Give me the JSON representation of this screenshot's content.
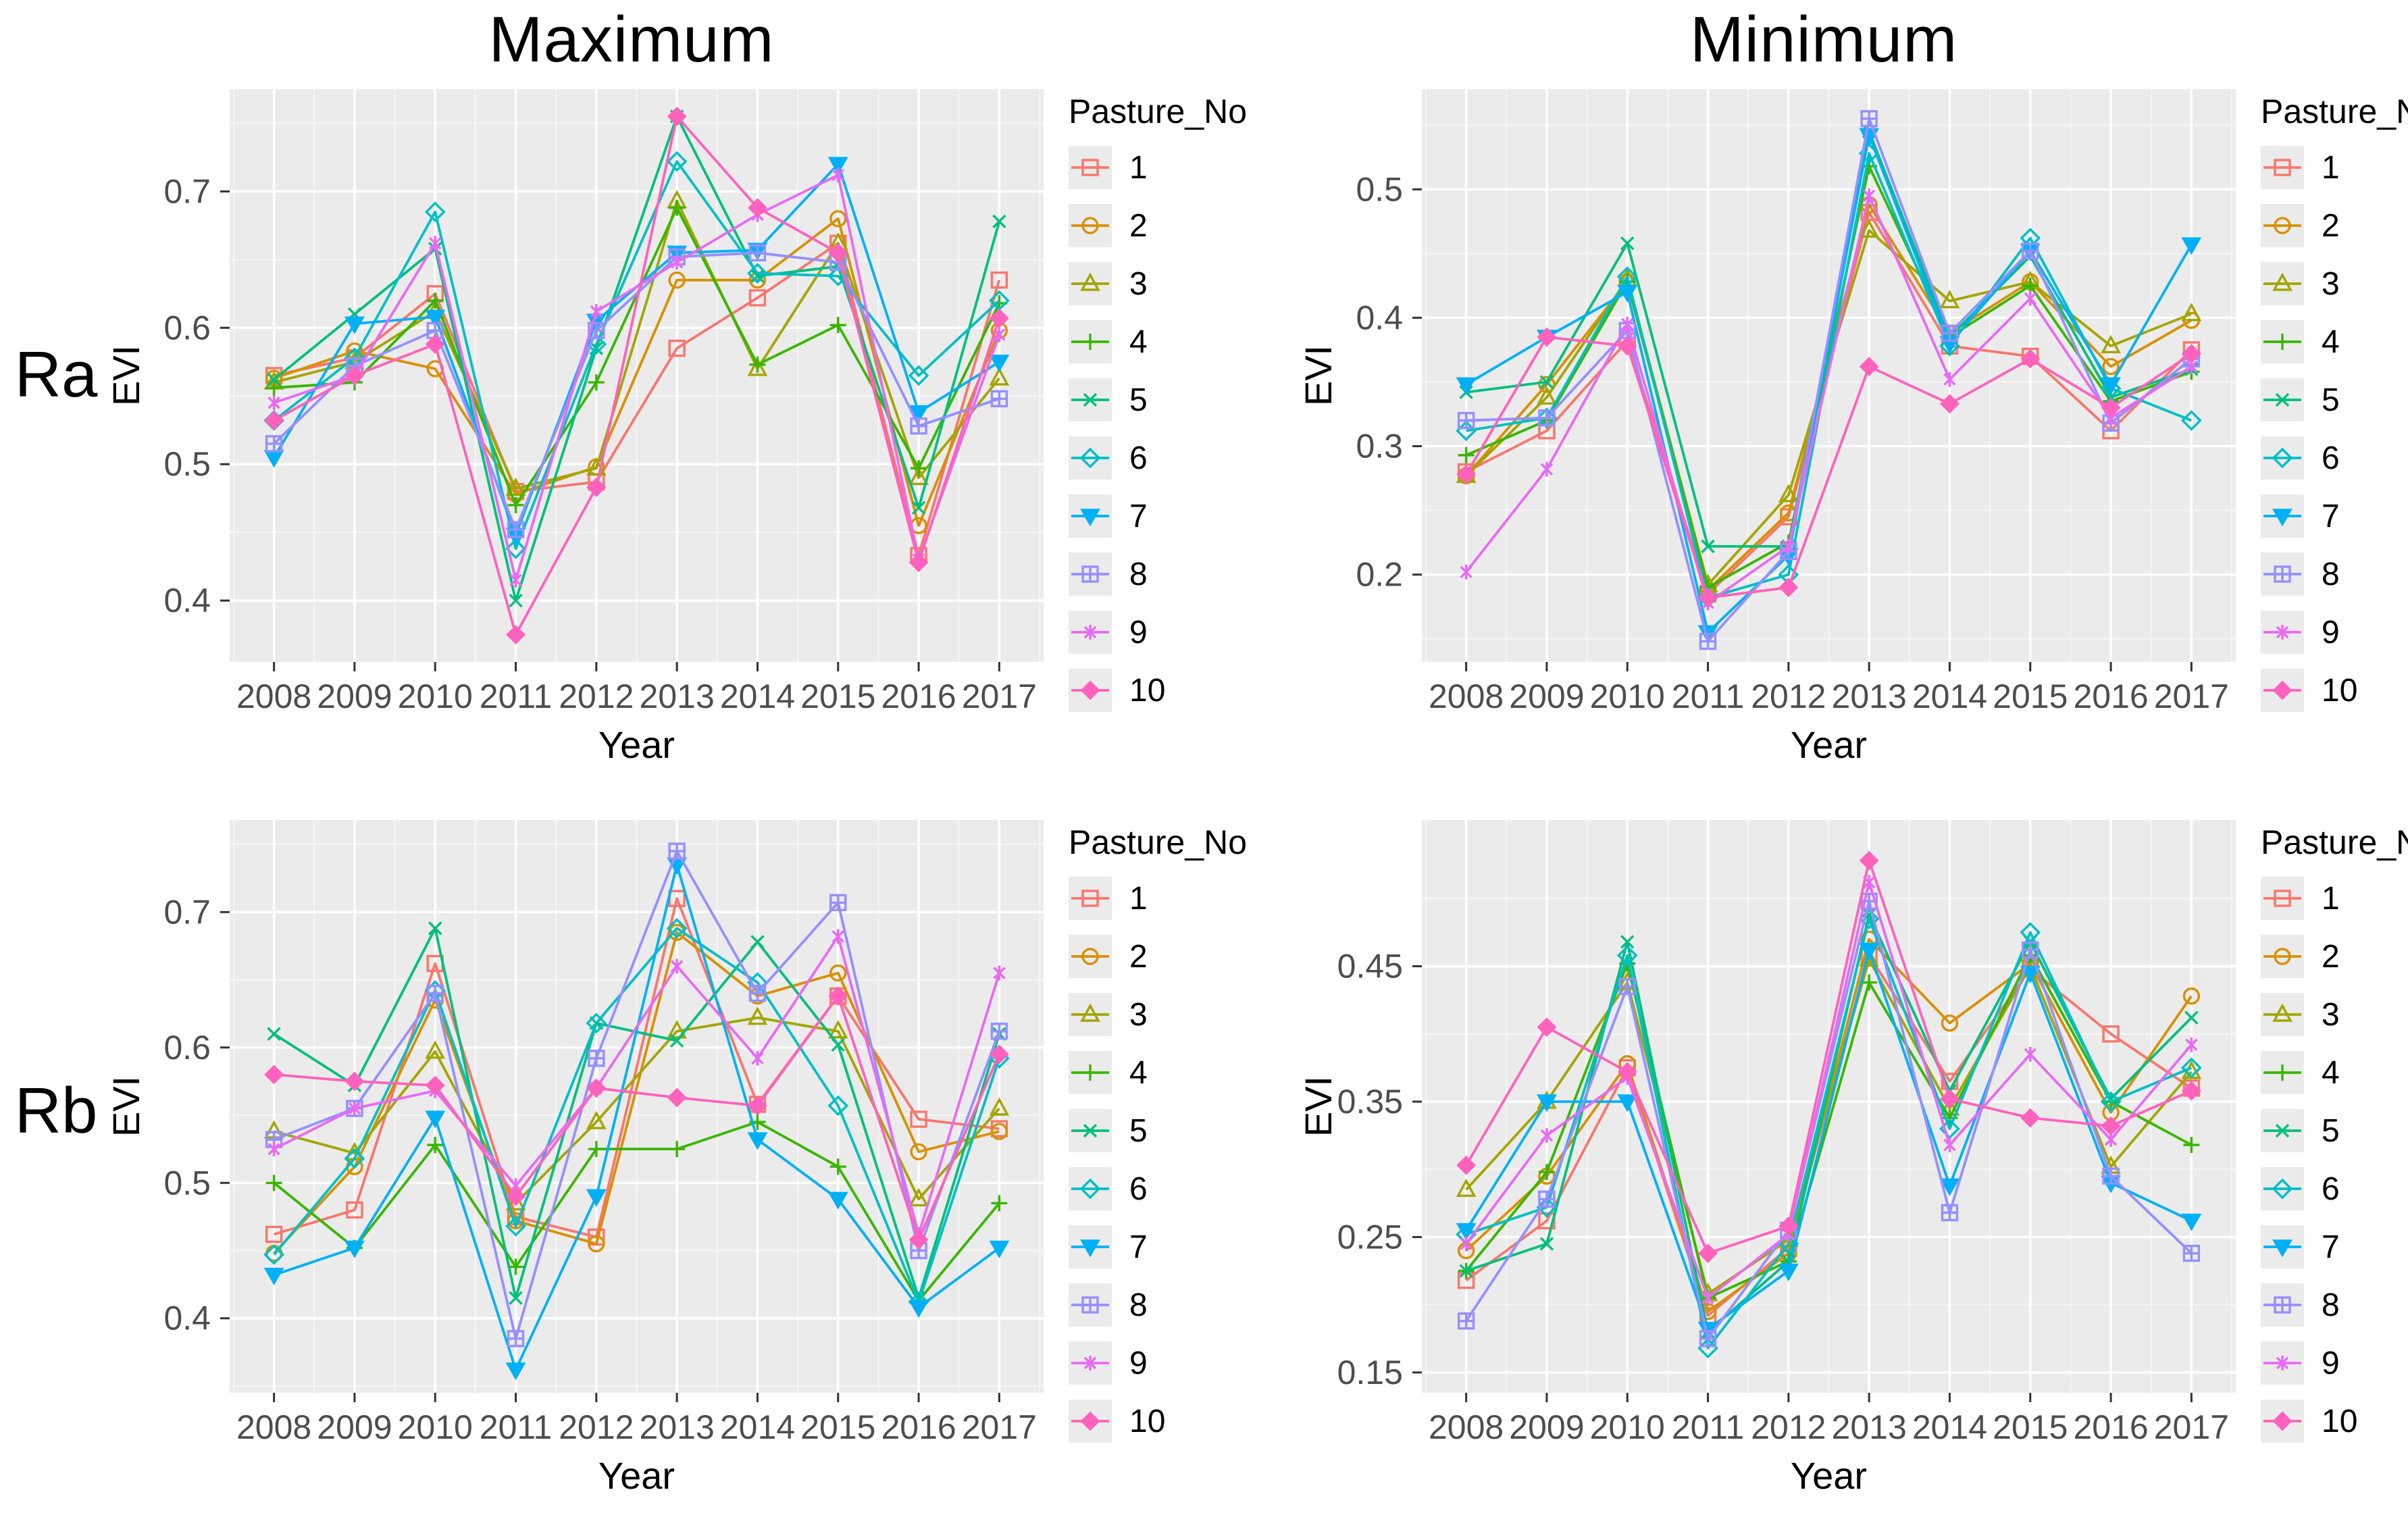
{
  "figure": {
    "col_titles": [
      "Maximum",
      "Minimum"
    ],
    "row_labels": [
      "Ra",
      "Rb"
    ]
  },
  "axes": {
    "x_label": "Year",
    "y_label": "EVI"
  },
  "legend": {
    "title": "Pasture_No",
    "items": [
      {
        "label": "1",
        "color": "#F8766D",
        "shape": "square-open"
      },
      {
        "label": "2",
        "color": "#D89000",
        "shape": "circle-open"
      },
      {
        "label": "3",
        "color": "#A3A500",
        "shape": "triangle-open"
      },
      {
        "label": "4",
        "color": "#39B600",
        "shape": "plus"
      },
      {
        "label": "5",
        "color": "#00BF7D",
        "shape": "x"
      },
      {
        "label": "6",
        "color": "#00BFC4",
        "shape": "diamond-open"
      },
      {
        "label": "7",
        "color": "#00B0F6",
        "shape": "triangle-down-filled"
      },
      {
        "label": "8",
        "color": "#9590FF",
        "shape": "square-plus"
      },
      {
        "label": "9",
        "color": "#E76BF3",
        "shape": "asterisk"
      },
      {
        "label": "10",
        "color": "#FF62BC",
        "shape": "diamond-filled"
      }
    ]
  },
  "style": {
    "panel_bg": "#EBEBEB",
    "grid_major": "#FFFFFF",
    "grid_minor": "#F5F5F5",
    "tick_color": "#333333",
    "tick_label_color": "#4D4D4D"
  },
  "chart_data": [
    {
      "id": "ra-maximum",
      "row": "Ra",
      "panel": "Maximum",
      "type": "line",
      "x": [
        2008,
        2009,
        2010,
        2011,
        2012,
        2013,
        2014,
        2015,
        2016,
        2017
      ],
      "ylim": [
        0.355,
        0.775
      ],
      "yticks": [
        0.4,
        0.5,
        0.6,
        0.7
      ],
      "ytick_labels": [
        "0.4",
        "0.5",
        "0.6",
        "0.7"
      ],
      "series": [
        {
          "name": "1",
          "values": [
            0.565,
            0.578,
            0.625,
            0.48,
            0.487,
            0.585,
            0.622,
            0.662,
            0.433,
            0.635
          ]
        },
        {
          "name": "2",
          "values": [
            0.563,
            0.583,
            0.57,
            0.478,
            0.498,
            0.635,
            0.635,
            0.68,
            0.455,
            0.598
          ]
        },
        {
          "name": "3",
          "values": [
            0.56,
            0.575,
            0.612,
            0.482,
            0.497,
            0.693,
            0.57,
            0.662,
            0.49,
            0.563
          ]
        },
        {
          "name": "4",
          "values": [
            0.556,
            0.56,
            0.62,
            0.47,
            0.56,
            0.688,
            0.573,
            0.602,
            0.497,
            0.618
          ]
        },
        {
          "name": "5",
          "values": [
            0.562,
            0.61,
            0.658,
            0.4,
            0.585,
            0.755,
            0.638,
            0.645,
            0.468,
            0.678
          ]
        },
        {
          "name": "6",
          "values": [
            0.532,
            0.578,
            0.685,
            0.438,
            0.588,
            0.722,
            0.64,
            0.638,
            0.565,
            0.62
          ]
        },
        {
          "name": "7",
          "values": [
            0.505,
            0.603,
            0.608,
            0.448,
            0.605,
            0.655,
            0.657,
            0.72,
            0.538,
            0.575
          ]
        },
        {
          "name": "8",
          "values": [
            0.515,
            0.572,
            0.598,
            0.452,
            0.598,
            0.652,
            0.655,
            0.648,
            0.528,
            0.548
          ]
        },
        {
          "name": "9",
          "values": [
            0.545,
            0.565,
            0.662,
            0.415,
            0.612,
            0.648,
            0.683,
            0.712,
            0.43,
            0.595
          ]
        },
        {
          "name": "10",
          "values": [
            0.532,
            0.565,
            0.588,
            0.375,
            0.483,
            0.755,
            0.688,
            0.655,
            0.428,
            0.607
          ]
        }
      ]
    },
    {
      "id": "ra-minimum",
      "row": "Ra",
      "panel": "Minimum",
      "type": "line",
      "x": [
        2008,
        2009,
        2010,
        2011,
        2012,
        2013,
        2014,
        2015,
        2016,
        2017
      ],
      "ylim": [
        0.132,
        0.578
      ],
      "yticks": [
        0.2,
        0.3,
        0.4,
        0.5
      ],
      "ytick_labels": [
        "0.2",
        "0.3",
        "0.4",
        "0.5"
      ],
      "series": [
        {
          "name": "1",
          "values": [
            0.28,
            0.312,
            0.382,
            0.185,
            0.245,
            0.482,
            0.378,
            0.37,
            0.312,
            0.375
          ]
        },
        {
          "name": "2",
          "values": [
            0.277,
            0.348,
            0.428,
            0.188,
            0.248,
            0.488,
            0.388,
            0.428,
            0.362,
            0.398
          ]
        },
        {
          "name": "3",
          "values": [
            0.277,
            0.338,
            0.43,
            0.192,
            0.262,
            0.468,
            0.413,
            0.428,
            0.378,
            0.403
          ]
        },
        {
          "name": "4",
          "values": [
            0.293,
            0.32,
            0.428,
            0.19,
            0.225,
            0.518,
            0.385,
            0.425,
            0.335,
            0.358
          ]
        },
        {
          "name": "5",
          "values": [
            0.342,
            0.35,
            0.458,
            0.222,
            0.222,
            0.545,
            0.385,
            0.448,
            0.338,
            0.36
          ]
        },
        {
          "name": "6",
          "values": [
            0.312,
            0.322,
            0.432,
            0.182,
            0.2,
            0.528,
            0.378,
            0.462,
            0.345,
            0.32
          ]
        },
        {
          "name": "7",
          "values": [
            0.348,
            0.385,
            0.42,
            0.155,
            0.215,
            0.542,
            0.38,
            0.452,
            0.348,
            0.457
          ]
        },
        {
          "name": "8",
          "values": [
            0.32,
            0.322,
            0.39,
            0.148,
            0.218,
            0.555,
            0.388,
            0.452,
            0.318,
            0.368
          ]
        },
        {
          "name": "9",
          "values": [
            0.202,
            0.282,
            0.395,
            0.178,
            0.222,
            0.495,
            0.352,
            0.415,
            0.322,
            0.362
          ]
        },
        {
          "name": "10",
          "values": [
            0.278,
            0.385,
            0.378,
            0.182,
            0.19,
            0.362,
            0.333,
            0.368,
            0.33,
            0.372
          ]
        }
      ]
    },
    {
      "id": "rb-maximum",
      "row": "Rb",
      "panel": "Maximum",
      "type": "line",
      "x": [
        2008,
        2009,
        2010,
        2011,
        2012,
        2013,
        2014,
        2015,
        2016,
        2017
      ],
      "ylim": [
        0.345,
        0.768
      ],
      "yticks": [
        0.4,
        0.5,
        0.6,
        0.7
      ],
      "ytick_labels": [
        "0.4",
        "0.5",
        "0.6",
        "0.7"
      ],
      "series": [
        {
          "name": "1",
          "values": [
            0.462,
            0.48,
            0.662,
            0.475,
            0.46,
            0.71,
            0.558,
            0.638,
            0.547,
            0.54
          ]
        },
        {
          "name": "2",
          "values": [
            0.448,
            0.512,
            0.635,
            0.472,
            0.455,
            0.685,
            0.638,
            0.655,
            0.523,
            0.538
          ]
        },
        {
          "name": "3",
          "values": [
            0.538,
            0.522,
            0.597,
            0.485,
            0.545,
            0.612,
            0.622,
            0.612,
            0.488,
            0.555
          ]
        },
        {
          "name": "4",
          "values": [
            0.5,
            0.452,
            0.528,
            0.438,
            0.525,
            0.525,
            0.545,
            0.512,
            0.413,
            0.485
          ]
        },
        {
          "name": "5",
          "values": [
            0.61,
            0.572,
            0.688,
            0.415,
            0.618,
            0.605,
            0.678,
            0.602,
            0.415,
            0.61
          ]
        },
        {
          "name": "6",
          "values": [
            0.447,
            0.518,
            0.642,
            0.468,
            0.618,
            0.688,
            0.648,
            0.557,
            0.412,
            0.592
          ]
        },
        {
          "name": "7",
          "values": [
            0.432,
            0.452,
            0.548,
            0.362,
            0.49,
            0.735,
            0.532,
            0.488,
            0.408,
            0.452
          ]
        },
        {
          "name": "8",
          "values": [
            0.532,
            0.555,
            0.64,
            0.385,
            0.592,
            0.745,
            0.64,
            0.707,
            0.45,
            0.612
          ]
        },
        {
          "name": "9",
          "values": [
            0.525,
            0.555,
            0.568,
            0.498,
            0.57,
            0.66,
            0.592,
            0.682,
            0.462,
            0.655
          ]
        },
        {
          "name": "10",
          "values": [
            0.58,
            0.575,
            0.572,
            0.49,
            0.57,
            0.563,
            0.557,
            0.638,
            0.458,
            0.595
          ]
        }
      ]
    },
    {
      "id": "rb-minimum",
      "row": "Rb",
      "panel": "Minimum",
      "type": "line",
      "x": [
        2008,
        2009,
        2010,
        2011,
        2012,
        2013,
        2014,
        2015,
        2016,
        2017
      ],
      "ylim": [
        0.135,
        0.558
      ],
      "yticks": [
        0.15,
        0.25,
        0.35,
        0.45
      ],
      "ytick_labels": [
        "0.15",
        "0.25",
        "0.35",
        "0.45"
      ],
      "series": [
        {
          "name": "1",
          "values": [
            0.218,
            0.262,
            0.375,
            0.192,
            0.242,
            0.458,
            0.365,
            0.448,
            0.4,
            0.36
          ]
        },
        {
          "name": "2",
          "values": [
            0.24,
            0.295,
            0.378,
            0.195,
            0.238,
            0.47,
            0.408,
            0.452,
            0.342,
            0.428
          ]
        },
        {
          "name": "3",
          "values": [
            0.285,
            0.35,
            0.438,
            0.208,
            0.248,
            0.455,
            0.345,
            0.45,
            0.302,
            0.372
          ]
        },
        {
          "name": "4",
          "values": [
            0.225,
            0.298,
            0.452,
            0.205,
            0.232,
            0.438,
            0.338,
            0.458,
            0.35,
            0.318
          ]
        },
        {
          "name": "5",
          "values": [
            0.225,
            0.245,
            0.468,
            0.18,
            0.232,
            0.488,
            0.358,
            0.468,
            0.352,
            0.412
          ]
        },
        {
          "name": "6",
          "values": [
            0.252,
            0.272,
            0.458,
            0.168,
            0.245,
            0.485,
            0.33,
            0.475,
            0.35,
            0.375
          ]
        },
        {
          "name": "7",
          "values": [
            0.255,
            0.35,
            0.35,
            0.182,
            0.225,
            0.462,
            0.288,
            0.445,
            0.29,
            0.262
          ]
        },
        {
          "name": "8",
          "values": [
            0.188,
            0.278,
            0.435,
            0.175,
            0.255,
            0.498,
            0.268,
            0.462,
            0.295,
            0.238
          ]
        },
        {
          "name": "9",
          "values": [
            0.245,
            0.325,
            0.368,
            0.205,
            0.252,
            0.512,
            0.318,
            0.385,
            0.322,
            0.392
          ]
        },
        {
          "name": "10",
          "values": [
            0.303,
            0.405,
            0.372,
            0.238,
            0.258,
            0.528,
            0.352,
            0.338,
            0.332,
            0.358
          ]
        }
      ]
    }
  ]
}
